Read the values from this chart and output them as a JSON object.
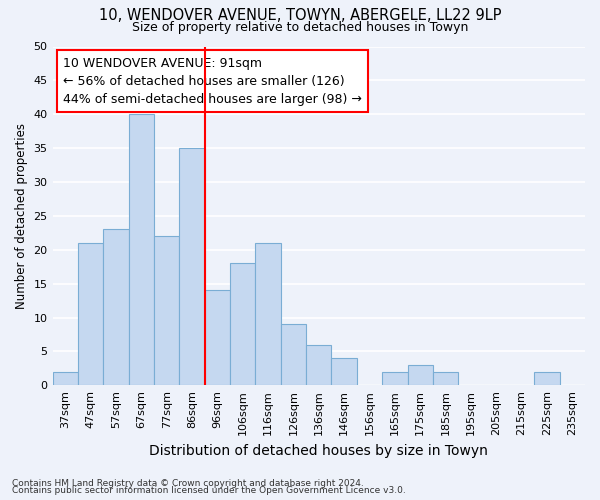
{
  "title1": "10, WENDOVER AVENUE, TOWYN, ABERGELE, LL22 9LP",
  "title2": "Size of property relative to detached houses in Towyn",
  "xlabel": "Distribution of detached houses by size in Towyn",
  "ylabel": "Number of detached properties",
  "footer1": "Contains HM Land Registry data © Crown copyright and database right 2024.",
  "footer2": "Contains public sector information licensed under the Open Government Licence v3.0.",
  "annotation_line1": "10 WENDOVER AVENUE: 91sqm",
  "annotation_line2": "← 56% of detached houses are smaller (126)",
  "annotation_line3": "44% of semi-detached houses are larger (98) →",
  "bar_color": "#c5d8f0",
  "bar_edge_color": "#7aadd4",
  "vline_color": "red",
  "categories": [
    "37sqm",
    "47sqm",
    "57sqm",
    "67sqm",
    "77sqm",
    "86sqm",
    "96sqm",
    "106sqm",
    "116sqm",
    "126sqm",
    "136sqm",
    "146sqm",
    "156sqm",
    "165sqm",
    "175sqm",
    "185sqm",
    "195sqm",
    "205sqm",
    "215sqm",
    "225sqm",
    "235sqm"
  ],
  "values": [
    2,
    21,
    23,
    40,
    22,
    35,
    14,
    18,
    21,
    9,
    6,
    4,
    0,
    2,
    3,
    2,
    0,
    0,
    0,
    2,
    0
  ],
  "vline_x_index": 5.5,
  "ylim": [
    0,
    50
  ],
  "yticks": [
    0,
    5,
    10,
    15,
    20,
    25,
    30,
    35,
    40,
    45,
    50
  ],
  "bg_color": "#eef2fa",
  "grid_color": "white",
  "annotation_box_color": "white",
  "annotation_box_edge": "red",
  "title1_fontsize": 10.5,
  "title2_fontsize": 9,
  "xlabel_fontsize": 10,
  "ylabel_fontsize": 8.5,
  "tick_fontsize": 8,
  "annotation_fontsize": 9,
  "footer_fontsize": 6.5
}
